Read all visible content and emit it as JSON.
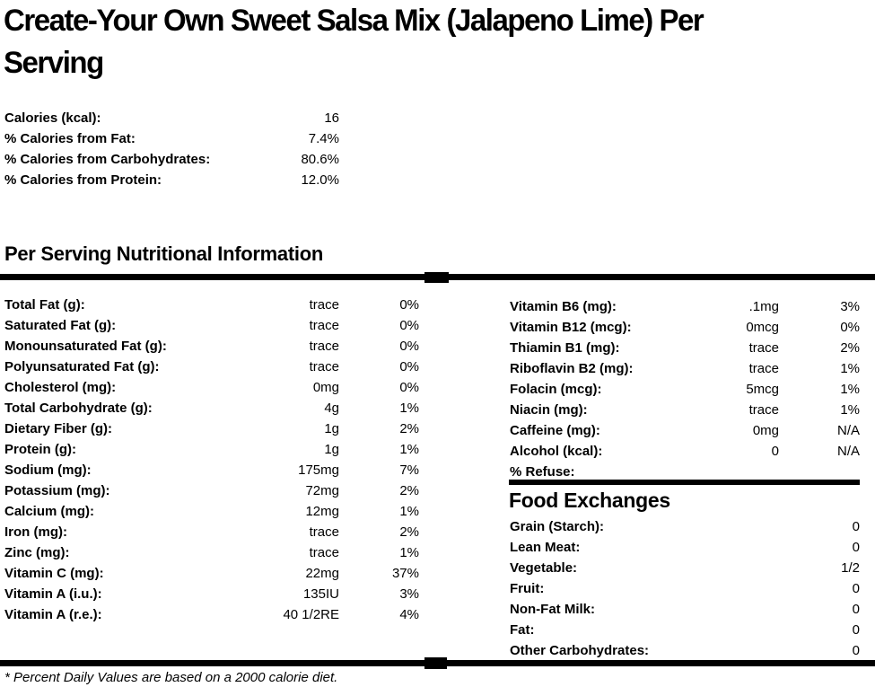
{
  "title": {
    "line1": "Create-Your Own Sweet Salsa Mix (Jalapeno Lime) Per",
    "line2": "Serving"
  },
  "calories_summary": {
    "rows": [
      {
        "label": "Calories (kcal):",
        "value": "16"
      },
      {
        "label": "% Calories from Fat:",
        "value": "7.4%"
      },
      {
        "label": "% Calories from Carbohydrates:",
        "value": "80.6%"
      },
      {
        "label": "% Calories from Protein:",
        "value": "12.0%"
      }
    ]
  },
  "nutrition_section": {
    "heading": "Per Serving Nutritional Information",
    "left_rows": [
      {
        "label": "Total Fat (g):",
        "amount": "trace",
        "dv": "0%"
      },
      {
        "label": "Saturated Fat (g):",
        "amount": "trace",
        "dv": "0%"
      },
      {
        "label": "Monounsaturated Fat (g):",
        "amount": "trace",
        "dv": "0%"
      },
      {
        "label": "Polyunsaturated Fat (g):",
        "amount": "trace",
        "dv": "0%"
      },
      {
        "label": "Cholesterol (mg):",
        "amount": "0mg",
        "dv": "0%"
      },
      {
        "label": "Total Carbohydrate (g):",
        "amount": "4g",
        "dv": "1%"
      },
      {
        "label": "Dietary Fiber (g):",
        "amount": "1g",
        "dv": "2%"
      },
      {
        "label": "Protein (g):",
        "amount": "1g",
        "dv": "1%"
      },
      {
        "label": "Sodium (mg):",
        "amount": "175mg",
        "dv": "7%"
      },
      {
        "label": "Potassium (mg):",
        "amount": "72mg",
        "dv": "2%"
      },
      {
        "label": "Calcium (mg):",
        "amount": "12mg",
        "dv": "1%"
      },
      {
        "label": "Iron (mg):",
        "amount": "trace",
        "dv": "2%"
      },
      {
        "label": "Zinc (mg):",
        "amount": "trace",
        "dv": "1%"
      },
      {
        "label": "Vitamin C (mg):",
        "amount": "22mg",
        "dv": "37%"
      },
      {
        "label": "Vitamin A (i.u.):",
        "amount": "135IU",
        "dv": "3%"
      },
      {
        "label": "Vitamin A (r.e.):",
        "amount": "40 1/2RE",
        "dv": "4%"
      }
    ],
    "right_rows": [
      {
        "label": "Vitamin B6 (mg):",
        "amount": ".1mg",
        "dv": "3%"
      },
      {
        "label": "Vitamin B12 (mcg):",
        "amount": "0mcg",
        "dv": "0%"
      },
      {
        "label": "Thiamin B1 (mg):",
        "amount": "trace",
        "dv": "2%"
      },
      {
        "label": "Riboflavin B2 (mg):",
        "amount": "trace",
        "dv": "1%"
      },
      {
        "label": "Folacin (mcg):",
        "amount": "5mcg",
        "dv": "1%"
      },
      {
        "label": "Niacin (mg):",
        "amount": "trace",
        "dv": "1%"
      },
      {
        "label": "Caffeine (mg):",
        "amount": "0mg",
        "dv": "N/A"
      },
      {
        "label": "Alcohol (kcal):",
        "amount": "0",
        "dv": "N/A"
      },
      {
        "label": "% Refuse:",
        "amount": "",
        "dv": ""
      }
    ]
  },
  "food_exchanges": {
    "heading": "Food Exchanges",
    "rows": [
      {
        "label": "Grain (Starch):",
        "value": "0"
      },
      {
        "label": "Lean Meat:",
        "value": "0"
      },
      {
        "label": "Vegetable:",
        "value": "1/2"
      },
      {
        "label": "Fruit:",
        "value": "0"
      },
      {
        "label": "Non-Fat Milk:",
        "value": "0"
      },
      {
        "label": "Fat:",
        "value": "0"
      },
      {
        "label": "Other Carbohydrates:",
        "value": "0"
      }
    ]
  },
  "footnote": "* Percent Daily Values are based on a 2000 calorie diet."
}
